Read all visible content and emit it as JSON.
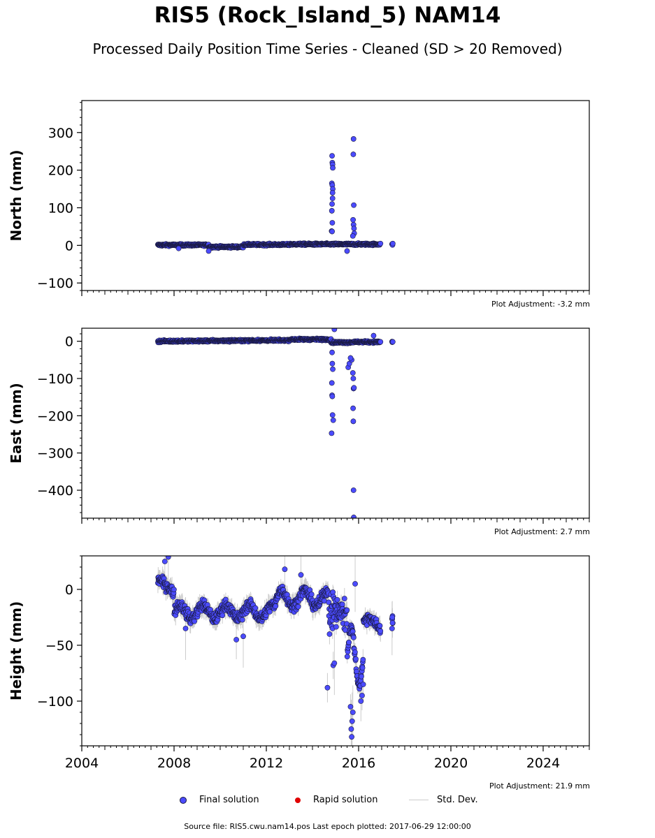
{
  "title": "RIS5 (Rock_Island_5) NAM14",
  "subtitle": "Processed Daily Position Time Series - Cleaned (SD > 20 Removed)",
  "colors": {
    "final": "#4b4bff",
    "rapid": "#e00000",
    "stddev": "#cccccc",
    "edge": "#1a1a40"
  },
  "legend": {
    "final": "Final solution",
    "rapid": "Rapid solution",
    "stddev": "Std. Dev."
  },
  "source": "Source file: RIS5.cwu.nam14.pos  Last epoch plotted: 2017-06-29 12:00:00",
  "chart_data": [
    {
      "type": "scatter",
      "ylabel": "North (mm)",
      "xlim": [
        2004,
        2026
      ],
      "ylim": [
        -120,
        385
      ],
      "yticks": [
        -100,
        0,
        100,
        200,
        300
      ],
      "ytick_labels": [
        "−100",
        "0",
        "100",
        "200",
        "300"
      ],
      "xticks": [
        2004,
        2008,
        2012,
        2016,
        2020,
        2024
      ],
      "xtick_labels": [],
      "adjustment": "Plot Adjustment: -3.2 mm",
      "outliers": [
        {
          "x": 2014.85,
          "y": 238
        },
        {
          "x": 2014.86,
          "y": 220
        },
        {
          "x": 2014.87,
          "y": 215
        },
        {
          "x": 2014.88,
          "y": 206
        },
        {
          "x": 2014.84,
          "y": 165
        },
        {
          "x": 2014.86,
          "y": 160
        },
        {
          "x": 2014.88,
          "y": 150
        },
        {
          "x": 2014.87,
          "y": 140
        },
        {
          "x": 2014.87,
          "y": 125
        },
        {
          "x": 2014.85,
          "y": 110
        },
        {
          "x": 2014.84,
          "y": 92
        },
        {
          "x": 2014.86,
          "y": 60
        },
        {
          "x": 2014.83,
          "y": 38
        },
        {
          "x": 2014.85,
          "y": 37
        },
        {
          "x": 2015.78,
          "y": 283
        },
        {
          "x": 2015.77,
          "y": 242
        },
        {
          "x": 2015.79,
          "y": 107
        },
        {
          "x": 2015.76,
          "y": 68
        },
        {
          "x": 2015.78,
          "y": 55
        },
        {
          "x": 2015.8,
          "y": 45
        },
        {
          "x": 2015.81,
          "y": 32
        },
        {
          "x": 2015.75,
          "y": 25
        },
        {
          "x": 2008.2,
          "y": -8
        },
        {
          "x": 2009.5,
          "y": -15
        },
        {
          "x": 2015.5,
          "y": -15
        }
      ]
    },
    {
      "type": "scatter",
      "ylabel": "East (mm)",
      "xlim": [
        2004,
        2026
      ],
      "ylim": [
        -475,
        35
      ],
      "yticks": [
        -400,
        -300,
        -200,
        -100,
        0
      ],
      "ytick_labels": [
        "−400",
        "−300",
        "−200",
        "−100",
        "0"
      ],
      "xticks": [
        2004,
        2008,
        2012,
        2016,
        2020,
        2024
      ],
      "xtick_labels": [],
      "adjustment": "Plot Adjustment: 2.7 mm",
      "outliers": [
        {
          "x": 2014.95,
          "y": 32
        },
        {
          "x": 2014.85,
          "y": -30
        },
        {
          "x": 2014.86,
          "y": -60
        },
        {
          "x": 2014.88,
          "y": -75
        },
        {
          "x": 2014.84,
          "y": -112
        },
        {
          "x": 2014.85,
          "y": -145
        },
        {
          "x": 2014.86,
          "y": -148
        },
        {
          "x": 2014.87,
          "y": -198
        },
        {
          "x": 2014.9,
          "y": -212
        },
        {
          "x": 2014.83,
          "y": -247
        },
        {
          "x": 2015.55,
          "y": -70
        },
        {
          "x": 2015.6,
          "y": -60
        },
        {
          "x": 2015.7,
          "y": -50
        },
        {
          "x": 2015.75,
          "y": -85
        },
        {
          "x": 2015.77,
          "y": -100
        },
        {
          "x": 2015.78,
          "y": -127
        },
        {
          "x": 2015.8,
          "y": -125
        },
        {
          "x": 2015.76,
          "y": -180
        },
        {
          "x": 2015.77,
          "y": -215
        },
        {
          "x": 2015.78,
          "y": -400
        },
        {
          "x": 2015.79,
          "y": -473
        },
        {
          "x": 2016.65,
          "y": 15
        },
        {
          "x": 2015.65,
          "y": -45
        }
      ]
    },
    {
      "type": "scatter",
      "ylabel": "Height (mm)",
      "xlim": [
        2004,
        2026
      ],
      "ylim": [
        -140,
        30
      ],
      "yticks": [
        -100,
        -50,
        0
      ],
      "ytick_labels": [
        "−100",
        "−50",
        "0"
      ],
      "xticks": [
        2004,
        2008,
        2012,
        2016,
        2020,
        2024
      ],
      "xtick_labels": [
        "2004",
        "2008",
        "2012",
        "2016",
        "2020",
        "2024"
      ],
      "adjustment": "Plot Adjustment: 21.9 mm",
      "outliers": [
        {
          "x": 2007.75,
          "y": 29
        },
        {
          "x": 2007.6,
          "y": 25
        },
        {
          "x": 2008.5,
          "y": -35
        },
        {
          "x": 2010.7,
          "y": -45
        },
        {
          "x": 2011.0,
          "y": -42
        },
        {
          "x": 2012.8,
          "y": 18
        },
        {
          "x": 2013.5,
          "y": 13
        },
        {
          "x": 2014.65,
          "y": -88
        },
        {
          "x": 2014.9,
          "y": -68
        },
        {
          "x": 2014.95,
          "y": -66
        },
        {
          "x": 2015.85,
          "y": 5
        },
        {
          "x": 2015.7,
          "y": -132
        },
        {
          "x": 2015.68,
          "y": -125
        },
        {
          "x": 2015.72,
          "y": -118
        },
        {
          "x": 2015.75,
          "y": -110
        },
        {
          "x": 2015.65,
          "y": -105
        },
        {
          "x": 2016.1,
          "y": -100
        },
        {
          "x": 2016.15,
          "y": -95
        },
        {
          "x": 2016.2,
          "y": -85
        },
        {
          "x": 2017.45,
          "y": -35
        },
        {
          "x": 2017.47,
          "y": -30
        },
        {
          "x": 2017.46,
          "y": -25
        }
      ]
    }
  ]
}
